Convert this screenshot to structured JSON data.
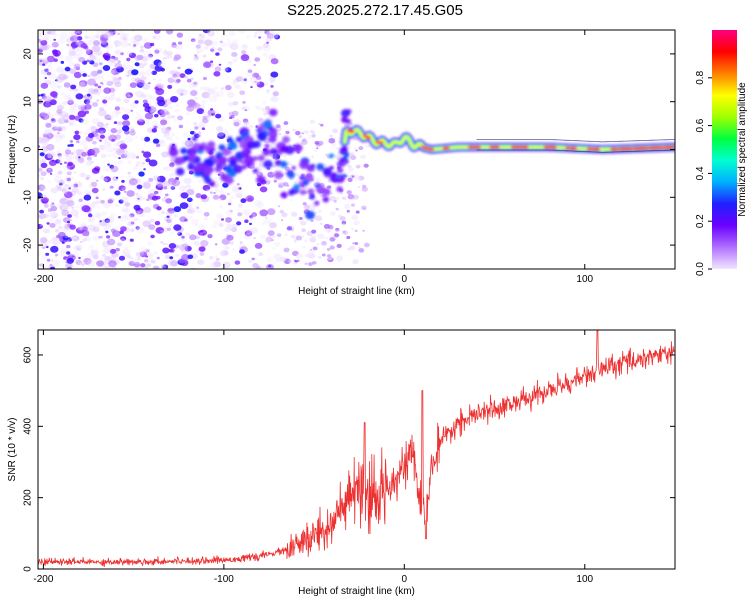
{
  "title": "S225.2025.272.17.45.G05",
  "chart_data": [
    {
      "type": "heatmap",
      "title": "S225.2025.272.17.45.G05",
      "xlabel": "Height of straight line (km)",
      "ylabel": "Frequency (Hz)",
      "xlim": [
        -203,
        150
      ],
      "ylim": [
        -25,
        25
      ],
      "xticks": [
        -200,
        -100,
        0,
        100
      ],
      "yticks": [
        -20,
        -10,
        0,
        10,
        20
      ],
      "colorbar": {
        "label": "Normalized spectral amplitude",
        "range": [
          0,
          1
        ],
        "ticks": [
          0.0,
          0.2,
          0.4,
          0.6,
          0.8
        ],
        "tick_labels": [
          "0.0",
          "0.2",
          "0.4",
          "0.6",
          "0.8"
        ],
        "colormap": [
          "#f2e6ff",
          "#b070ff",
          "#6b00ff",
          "#2020ff",
          "#00b0ff",
          "#00ffd0",
          "#00ff40",
          "#a0ff00",
          "#ffff00",
          "#ff8000",
          "#ff0000",
          "#ff0080"
        ]
      },
      "ridge": [
        {
          "x": -128,
          "y": -1.5
        },
        {
          "x": -110,
          "y": -2.5
        },
        {
          "x": -95,
          "y": -1.5
        },
        {
          "x": -75,
          "y": 2
        },
        {
          "x": -60,
          "y": -4
        },
        {
          "x": -45,
          "y": -6
        },
        {
          "x": -35,
          "y": -5
        },
        {
          "x": -32,
          "y": 4
        },
        {
          "x": -25,
          "y": 3.5
        },
        {
          "x": -15,
          "y": 1.5
        },
        {
          "x": -5,
          "y": 1
        },
        {
          "x": 0,
          "y": 2.5
        },
        {
          "x": 5,
          "y": 1
        },
        {
          "x": 15,
          "y": 0
        },
        {
          "x": 30,
          "y": 0.5
        },
        {
          "x": 50,
          "y": 0.5
        },
        {
          "x": 80,
          "y": 0.5
        },
        {
          "x": 110,
          "y": 0
        },
        {
          "x": 150,
          "y": 0.5
        }
      ],
      "noise_region": {
        "x_from": -203,
        "x_to": -70,
        "y_from": -25,
        "y_to": 25
      }
    },
    {
      "type": "line",
      "xlabel": "Height of straight line (km)",
      "ylabel": "SNR (10 * v/v)",
      "xlim": [
        -203,
        150
      ],
      "ylim": [
        0,
        670
      ],
      "xticks": [
        -200,
        -100,
        0,
        100
      ],
      "yticks": [
        0,
        200,
        400,
        600
      ],
      "color": "#ee3030",
      "series": [
        {
          "name": "SNR",
          "x": [
            -203,
            -150,
            -100,
            -80,
            -60,
            -45,
            -35,
            -25,
            -20,
            -15,
            -10,
            -5,
            0,
            5,
            8,
            12,
            15,
            20,
            30,
            50,
            70,
            90,
            110,
            130,
            150
          ],
          "values": [
            20,
            20,
            25,
            35,
            60,
            110,
            160,
            230,
            170,
            200,
            230,
            260,
            300,
            320,
            200,
            130,
            290,
            350,
            410,
            450,
            480,
            520,
            560,
            590,
            610
          ]
        }
      ],
      "spikes": [
        {
          "x": -22,
          "y": 410
        },
        {
          "x": 10,
          "y": 500
        },
        {
          "x": 12,
          "y": 85
        },
        {
          "x": 107,
          "y": 670
        }
      ]
    }
  ]
}
